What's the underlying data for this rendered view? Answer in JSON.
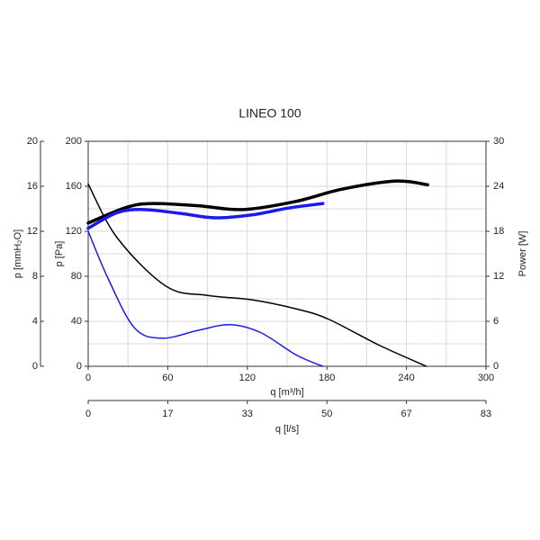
{
  "chart_data": {
    "type": "line",
    "title": "LINEO 100",
    "x_label": "q [m³/h]",
    "x2_label": "q [l/s]",
    "y_label": "p [Pa]",
    "y3_label": "p [mmH₂O]",
    "y2_label": "Power [W]",
    "xlim": [
      0,
      300
    ],
    "xticks": [
      0,
      60,
      120,
      180,
      240,
      300
    ],
    "x_minor_ticks": [
      30,
      90,
      150,
      210,
      270
    ],
    "x2lim": [
      0,
      83.33
    ],
    "x2ticks": [
      0,
      {
        "value": 16.67,
        "label": "17"
      },
      {
        "value": 33.33,
        "label": "33"
      },
      50,
      {
        "value": 66.67,
        "label": "67"
      },
      {
        "value": 83.33,
        "label": "83"
      }
    ],
    "ylim": [
      0,
      200
    ],
    "yticks": [
      0,
      40,
      80,
      120,
      160,
      200
    ],
    "y_minor_ticks": [
      20,
      60,
      100,
      140,
      180
    ],
    "y3lim": [
      0,
      20
    ],
    "y3ticks": [
      0,
      4,
      8,
      12,
      16,
      20
    ],
    "y2lim": [
      0,
      30
    ],
    "y2ticks": [
      0,
      6,
      12,
      18,
      24,
      30
    ],
    "grid": true,
    "series": [
      {
        "color": "#000000",
        "line_width": 1.5,
        "x": [
          0,
          22,
          59,
          90,
          124,
          157,
          181,
          219,
          255
        ],
        "values": [
          162,
          114,
          71,
          63,
          59,
          51,
          42,
          19,
          0
        ]
      },
      {
        "color": "#1a1aeb",
        "line_width": 1.5,
        "x": [
          0,
          15,
          35,
          56,
          83,
          107,
          130,
          157,
          177
        ],
        "values": [
          120,
          78,
          34,
          25,
          32,
          37,
          30,
          10,
          0
        ]
      },
      {
        "color": "#000000",
        "line_width": 3.5,
        "axis": "y2",
        "x": [
          0,
          29,
          49,
          83,
          117,
          157,
          191,
          232,
          256
        ],
        "values": [
          19.1,
          21.2,
          21.7,
          21.4,
          20.9,
          22,
          23.6,
          24.7,
          24.2
        ]
      },
      {
        "color": "#1a1aeb",
        "line_width": 3.5,
        "axis": "y2",
        "x": [
          0,
          22,
          42,
          69,
          96,
          124,
          151,
          177
        ],
        "values": [
          18.4,
          20.5,
          20.9,
          20.4,
          19.8,
          20.2,
          21.1,
          21.7
        ]
      }
    ]
  }
}
